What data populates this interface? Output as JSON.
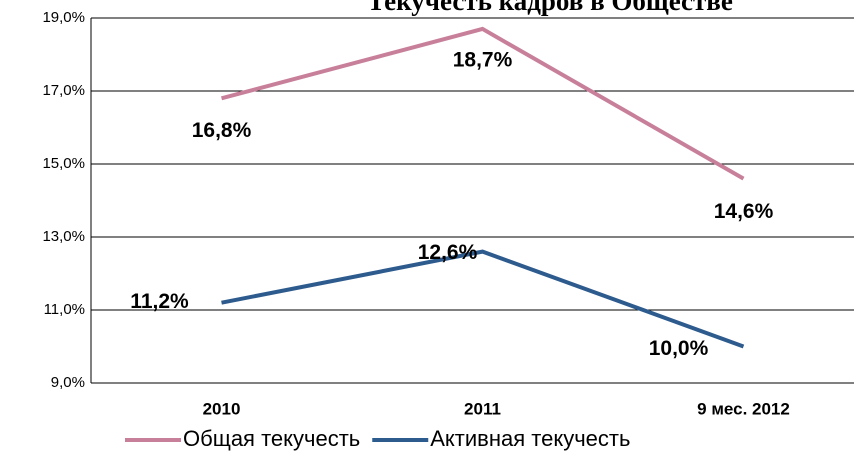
{
  "chart_data": {
    "type": "line",
    "title": "Текучесть кадров в Обществе",
    "categories": [
      "2010",
      "2011",
      "9 мес. 2012"
    ],
    "series": [
      {
        "name": "Общая текучесть",
        "color": "#c8809a",
        "values": [
          16.8,
          18.7,
          14.6
        ],
        "value_labels": [
          "16,8%",
          "18,7%",
          "14,6%"
        ]
      },
      {
        "name": "Активная текучесть",
        "color": "#2e5b8e",
        "values": [
          11.2,
          12.6,
          10.0
        ],
        "value_labels": [
          "11,2%",
          "12,6%",
          "10,0%"
        ]
      }
    ],
    "ylim": [
      9,
      19
    ],
    "yticks": [
      {
        "value": 9,
        "label": "9,0%"
      },
      {
        "value": 11,
        "label": "11,0%"
      },
      {
        "value": 13,
        "label": "13,0%"
      },
      {
        "value": 15,
        "label": "15,0%"
      },
      {
        "value": 17,
        "label": "17,0%"
      },
      {
        "value": 19,
        "label": "19,0%"
      }
    ],
    "grid": true,
    "legend": "bottom"
  }
}
